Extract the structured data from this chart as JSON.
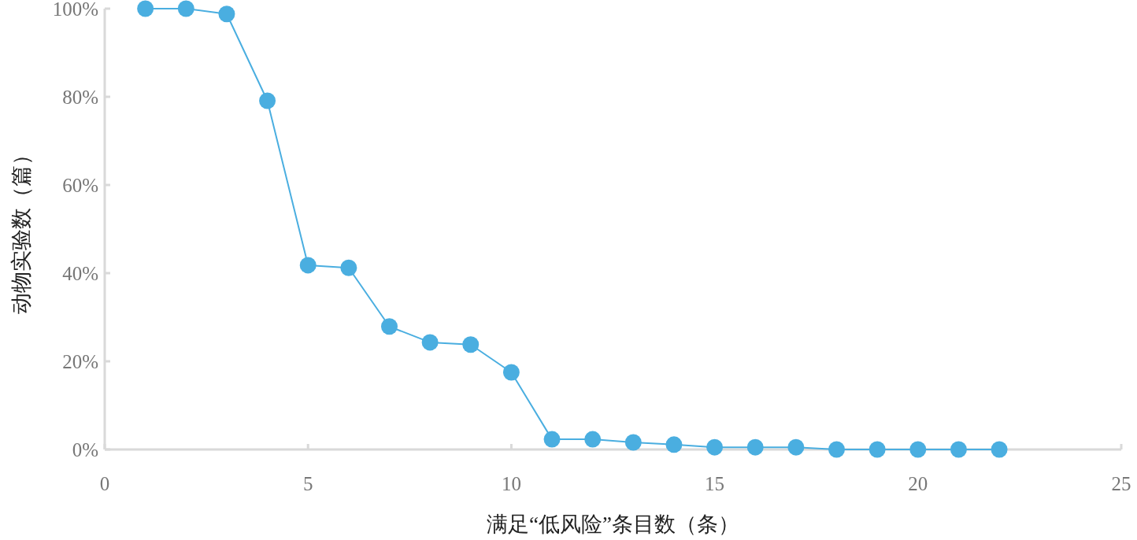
{
  "chart_data": {
    "type": "line",
    "xlabel": "满足“低风险”条目数（条）",
    "ylabel": "动物实验数（篇）",
    "x": [
      1,
      2,
      3,
      4,
      5,
      6,
      7,
      8,
      9,
      10,
      11,
      12,
      13,
      14,
      15,
      16,
      17,
      18,
      19,
      20,
      21,
      22
    ],
    "series": [
      {
        "color": "#4aaee0",
        "values": [
          100,
          100,
          98.8,
          79.1,
          41.8,
          41.2,
          27.9,
          24.3,
          23.8,
          17.5,
          2.3,
          2.3,
          1.6,
          1.1,
          0.5,
          0.5,
          0.5,
          0,
          0,
          0,
          0,
          0
        ]
      }
    ],
    "xlim": [
      0,
      25
    ],
    "xticks": [
      0,
      5,
      10,
      15,
      20,
      25
    ],
    "ylim": [
      0,
      100
    ],
    "yticks": [
      {
        "value": 0,
        "label": "0%"
      },
      {
        "value": 20,
        "label": "20%"
      },
      {
        "value": 40,
        "label": "40%"
      },
      {
        "value": 60,
        "label": "60%"
      },
      {
        "value": 80,
        "label": "80%"
      },
      {
        "value": 100,
        "label": "100%"
      }
    ],
    "marker": "circle",
    "line_style": "solid"
  }
}
